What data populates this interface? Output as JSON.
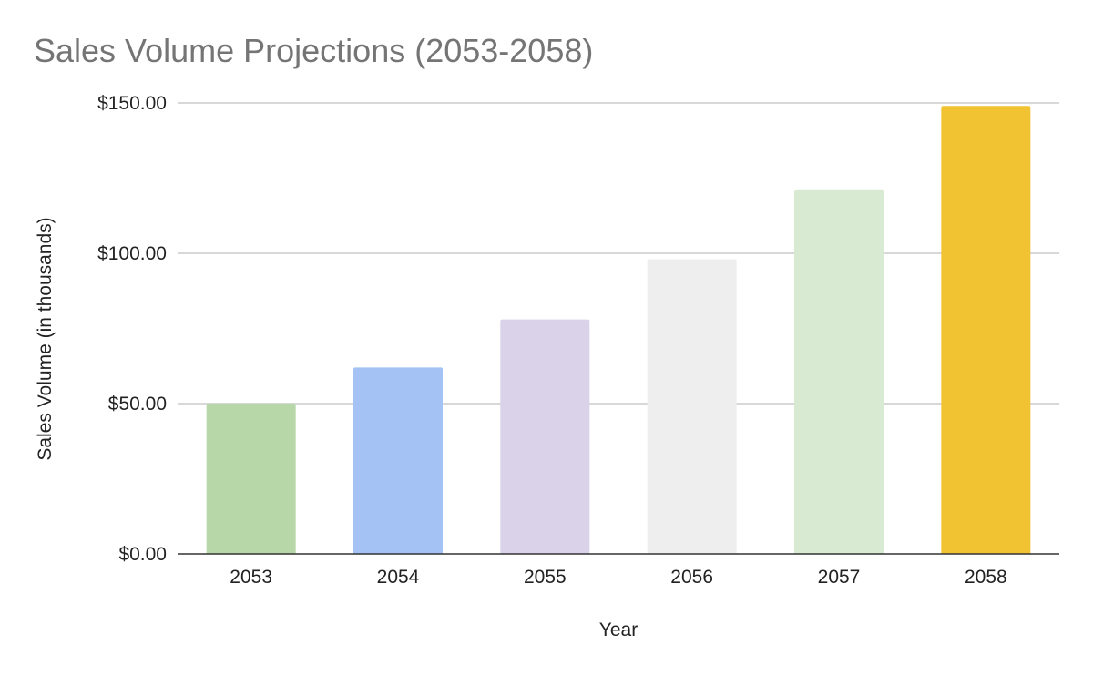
{
  "chart_data": {
    "type": "bar",
    "title": "Sales Volume Projections (2053-2058)",
    "xlabel": "Year",
    "ylabel": "Sales Volume (in thousands)",
    "categories": [
      "2053",
      "2054",
      "2055",
      "2056",
      "2057",
      "2058"
    ],
    "values": [
      50,
      62,
      78,
      98,
      121,
      149
    ],
    "colors": [
      "#b7d7a8",
      "#a4c2f4",
      "#d9d2e9",
      "#eeeeee",
      "#d9ead3",
      "#f1c232"
    ],
    "ylim": [
      0,
      150
    ],
    "yticks": [
      0,
      50,
      100,
      150
    ],
    "ytick_labels": [
      "$0.00",
      "$50.00",
      "$100.00",
      "$150.00"
    ],
    "grid": true,
    "legend": "none"
  }
}
